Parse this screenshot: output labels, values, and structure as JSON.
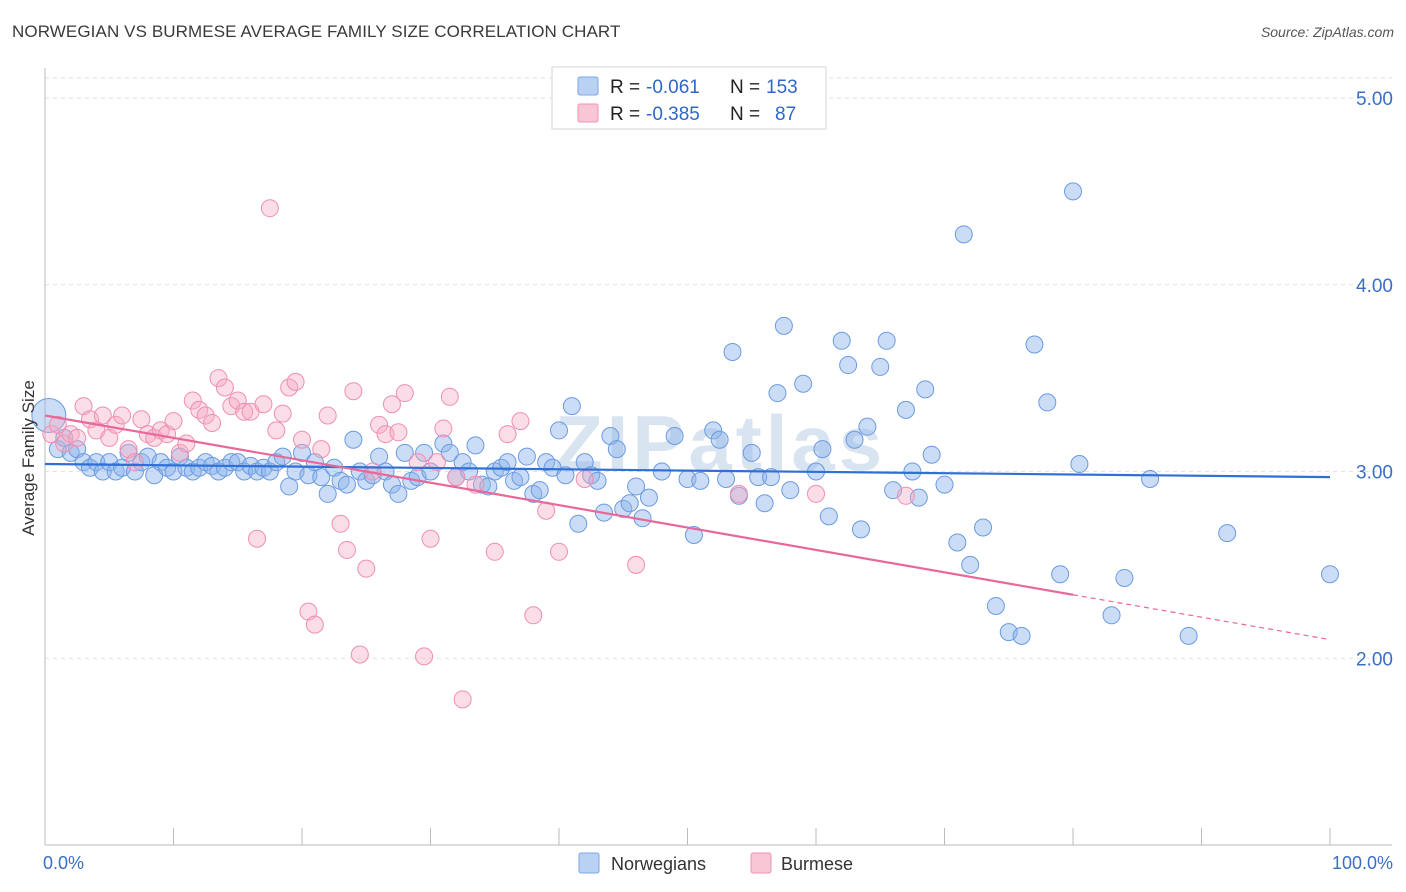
{
  "title": "NORWEGIAN VS BURMESE AVERAGE FAMILY SIZE CORRELATION CHART",
  "source": "Source: ZipAtlas.com",
  "watermark": "ZIPatlas",
  "legend": {
    "rows": [
      {
        "r_label": "R =",
        "r_value": "-0.061",
        "n_label": "N =",
        "n_value": "153"
      },
      {
        "r_label": "R =",
        "r_value": "-0.385",
        "n_label": "N =",
        "n_value": "87"
      }
    ]
  },
  "chart_data": {
    "type": "scatter",
    "title": "NORWEGIAN VS BURMESE AVERAGE FAMILY SIZE CORRELATION CHART",
    "xlabel": "",
    "ylabel": "Average Family Size",
    "xlim": [
      0,
      100
    ],
    "ylim": [
      1.0,
      5.15
    ],
    "x_tick_labels": [
      "0.0%",
      "100.0%"
    ],
    "y_ticks": [
      2.0,
      3.0,
      4.0,
      5.0
    ],
    "y_tick_labels": [
      "2.00",
      "3.00",
      "4.00",
      "5.00"
    ],
    "grid": true,
    "legend_position": "top-center",
    "colors": {
      "Norwegians": "#6b9be0",
      "Burmese": "#f08fb0",
      "norw_line": "#2f6fd6",
      "burm_line": "#e8689a"
    },
    "series": [
      {
        "name": "Norwegians",
        "trend": {
          "x0": 0,
          "y0": 3.04,
          "x1": 100,
          "y1": 2.97,
          "solid_until": 100
        },
        "points": [
          [
            0.3,
            3.3
          ],
          [
            1,
            3.12
          ],
          [
            1.5,
            3.18
          ],
          [
            2,
            3.1
          ],
          [
            2.5,
            3.12
          ],
          [
            3,
            3.05
          ],
          [
            3.5,
            3.02
          ],
          [
            4,
            3.05
          ],
          [
            4.5,
            3.0
          ],
          [
            5,
            3.05
          ],
          [
            5.5,
            3.0
          ],
          [
            6,
            3.02
          ],
          [
            6.5,
            3.1
          ],
          [
            7,
            3.0
          ],
          [
            7.5,
            3.05
          ],
          [
            8,
            3.08
          ],
          [
            8.5,
            2.98
          ],
          [
            9,
            3.05
          ],
          [
            9.5,
            3.02
          ],
          [
            10,
            3.0
          ],
          [
            10.5,
            3.08
          ],
          [
            11,
            3.02
          ],
          [
            11.5,
            3.0
          ],
          [
            12,
            3.02
          ],
          [
            12.5,
            3.05
          ],
          [
            13,
            3.03
          ],
          [
            13.5,
            3.0
          ],
          [
            14,
            3.02
          ],
          [
            14.5,
            3.05
          ],
          [
            15,
            3.05
          ],
          [
            15.5,
            3.0
          ],
          [
            16,
            3.03
          ],
          [
            16.5,
            3.0
          ],
          [
            17,
            3.02
          ],
          [
            17.5,
            3.0
          ],
          [
            18,
            3.05
          ],
          [
            18.5,
            3.08
          ],
          [
            19,
            2.92
          ],
          [
            19.5,
            3.0
          ],
          [
            20,
            3.1
          ],
          [
            20.5,
            2.98
          ],
          [
            21,
            3.05
          ],
          [
            21.5,
            2.97
          ],
          [
            22,
            2.88
          ],
          [
            22.5,
            3.02
          ],
          [
            23,
            2.95
          ],
          [
            23.5,
            2.93
          ],
          [
            24,
            3.17
          ],
          [
            24.5,
            3.0
          ],
          [
            25,
            2.95
          ],
          [
            25.5,
            2.98
          ],
          [
            26,
            3.08
          ],
          [
            26.5,
            3.0
          ],
          [
            27,
            2.93
          ],
          [
            27.5,
            2.88
          ],
          [
            28,
            3.1
          ],
          [
            28.5,
            2.95
          ],
          [
            29,
            2.97
          ],
          [
            29.5,
            3.1
          ],
          [
            30,
            3.0
          ],
          [
            31,
            3.15
          ],
          [
            31.5,
            3.1
          ],
          [
            32,
            2.97
          ],
          [
            32.5,
            3.05
          ],
          [
            33,
            3.0
          ],
          [
            33.5,
            3.14
          ],
          [
            34,
            2.93
          ],
          [
            34.5,
            2.92
          ],
          [
            35,
            3.0
          ],
          [
            35.5,
            3.02
          ],
          [
            36,
            3.05
          ],
          [
            36.5,
            2.95
          ],
          [
            37,
            2.97
          ],
          [
            37.5,
            3.08
          ],
          [
            38,
            2.88
          ],
          [
            38.5,
            2.9
          ],
          [
            39,
            3.05
          ],
          [
            39.5,
            3.02
          ],
          [
            40,
            3.22
          ],
          [
            40.5,
            2.98
          ],
          [
            41,
            3.35
          ],
          [
            41.5,
            2.72
          ],
          [
            42,
            3.05
          ],
          [
            42.5,
            2.98
          ],
          [
            43,
            2.95
          ],
          [
            43.5,
            2.78
          ],
          [
            44,
            3.19
          ],
          [
            44.5,
            3.12
          ],
          [
            45,
            2.8
          ],
          [
            45.5,
            2.83
          ],
          [
            46,
            2.92
          ],
          [
            46.5,
            2.75
          ],
          [
            47,
            2.86
          ],
          [
            48,
            3.0
          ],
          [
            49,
            3.19
          ],
          [
            50,
            2.96
          ],
          [
            50.5,
            2.66
          ],
          [
            51,
            2.95
          ],
          [
            52,
            3.22
          ],
          [
            52.5,
            3.17
          ],
          [
            53,
            2.96
          ],
          [
            53.5,
            3.64
          ],
          [
            54,
            2.87
          ],
          [
            55,
            3.1
          ],
          [
            55.5,
            2.97
          ],
          [
            56,
            2.83
          ],
          [
            56.5,
            2.97
          ],
          [
            57,
            3.42
          ],
          [
            57.5,
            3.78
          ],
          [
            58,
            2.9
          ],
          [
            59,
            3.47
          ],
          [
            60,
            3.0
          ],
          [
            60.5,
            3.12
          ],
          [
            61,
            2.76
          ],
          [
            62,
            3.7
          ],
          [
            62.5,
            3.57
          ],
          [
            63,
            3.17
          ],
          [
            63.5,
            2.69
          ],
          [
            64,
            3.24
          ],
          [
            65,
            3.56
          ],
          [
            65.5,
            3.7
          ],
          [
            66,
            2.9
          ],
          [
            67,
            3.33
          ],
          [
            67.5,
            3.0
          ],
          [
            68,
            2.86
          ],
          [
            68.5,
            3.44
          ],
          [
            69,
            3.09
          ],
          [
            70,
            2.93
          ],
          [
            71,
            2.62
          ],
          [
            71.5,
            4.27
          ],
          [
            72,
            2.5
          ],
          [
            73,
            2.7
          ],
          [
            74,
            2.28
          ],
          [
            75,
            2.14
          ],
          [
            76,
            2.12
          ],
          [
            77,
            3.68
          ],
          [
            78,
            3.37
          ],
          [
            79,
            2.45
          ],
          [
            80,
            4.5
          ],
          [
            80.5,
            3.04
          ],
          [
            83,
            2.23
          ],
          [
            84,
            2.43
          ],
          [
            86,
            2.96
          ],
          [
            89,
            2.12
          ],
          [
            92,
            2.67
          ],
          [
            100,
            2.45
          ]
        ]
      },
      {
        "name": "Burmese",
        "trend": {
          "x0": 0,
          "y0": 3.3,
          "x1": 100,
          "y1": 2.1,
          "solid_until": 80
        },
        "points": [
          [
            0.5,
            3.2
          ],
          [
            1,
            3.25
          ],
          [
            1.5,
            3.15
          ],
          [
            2,
            3.2
          ],
          [
            2.5,
            3.18
          ],
          [
            3,
            3.35
          ],
          [
            3.5,
            3.28
          ],
          [
            4,
            3.22
          ],
          [
            4.5,
            3.3
          ],
          [
            5,
            3.18
          ],
          [
            5.5,
            3.25
          ],
          [
            6,
            3.3
          ],
          [
            6.5,
            3.12
          ],
          [
            7,
            3.05
          ],
          [
            7.5,
            3.28
          ],
          [
            8,
            3.2
          ],
          [
            8.5,
            3.18
          ],
          [
            9,
            3.22
          ],
          [
            9.5,
            3.2
          ],
          [
            10,
            3.27
          ],
          [
            10.5,
            3.1
          ],
          [
            11,
            3.15
          ],
          [
            11.5,
            3.38
          ],
          [
            12,
            3.33
          ],
          [
            12.5,
            3.3
          ],
          [
            13,
            3.26
          ],
          [
            13.5,
            3.5
          ],
          [
            14,
            3.45
          ],
          [
            14.5,
            3.35
          ],
          [
            15,
            3.38
          ],
          [
            15.5,
            3.32
          ],
          [
            16,
            3.32
          ],
          [
            16.5,
            2.64
          ],
          [
            17,
            3.36
          ],
          [
            17.5,
            4.41
          ],
          [
            18,
            3.22
          ],
          [
            18.5,
            3.31
          ],
          [
            19,
            3.45
          ],
          [
            19.5,
            3.48
          ],
          [
            20,
            3.17
          ],
          [
            20.5,
            2.25
          ],
          [
            21,
            2.18
          ],
          [
            21.5,
            3.12
          ],
          [
            22,
            3.3
          ],
          [
            23,
            2.72
          ],
          [
            23.5,
            2.58
          ],
          [
            24,
            3.43
          ],
          [
            24.5,
            2.02
          ],
          [
            25,
            2.48
          ],
          [
            25.5,
            3.0
          ],
          [
            26,
            3.25
          ],
          [
            26.5,
            3.2
          ],
          [
            27,
            3.36
          ],
          [
            27.5,
            3.21
          ],
          [
            28,
            3.42
          ],
          [
            29,
            3.05
          ],
          [
            29.5,
            2.01
          ],
          [
            30,
            2.64
          ],
          [
            30.5,
            3.05
          ],
          [
            31,
            3.23
          ],
          [
            31.5,
            3.4
          ],
          [
            32,
            2.97
          ],
          [
            32.5,
            1.78
          ],
          [
            33.5,
            2.93
          ],
          [
            35,
            2.57
          ],
          [
            36,
            3.2
          ],
          [
            37,
            3.27
          ],
          [
            38,
            2.23
          ],
          [
            39,
            2.79
          ],
          [
            40,
            2.57
          ],
          [
            42,
            2.96
          ],
          [
            46,
            2.5
          ],
          [
            54,
            2.88
          ],
          [
            60,
            2.88
          ],
          [
            67,
            2.87
          ]
        ]
      }
    ]
  },
  "bottom_legend": [
    "Norwegians",
    "Burmese"
  ]
}
